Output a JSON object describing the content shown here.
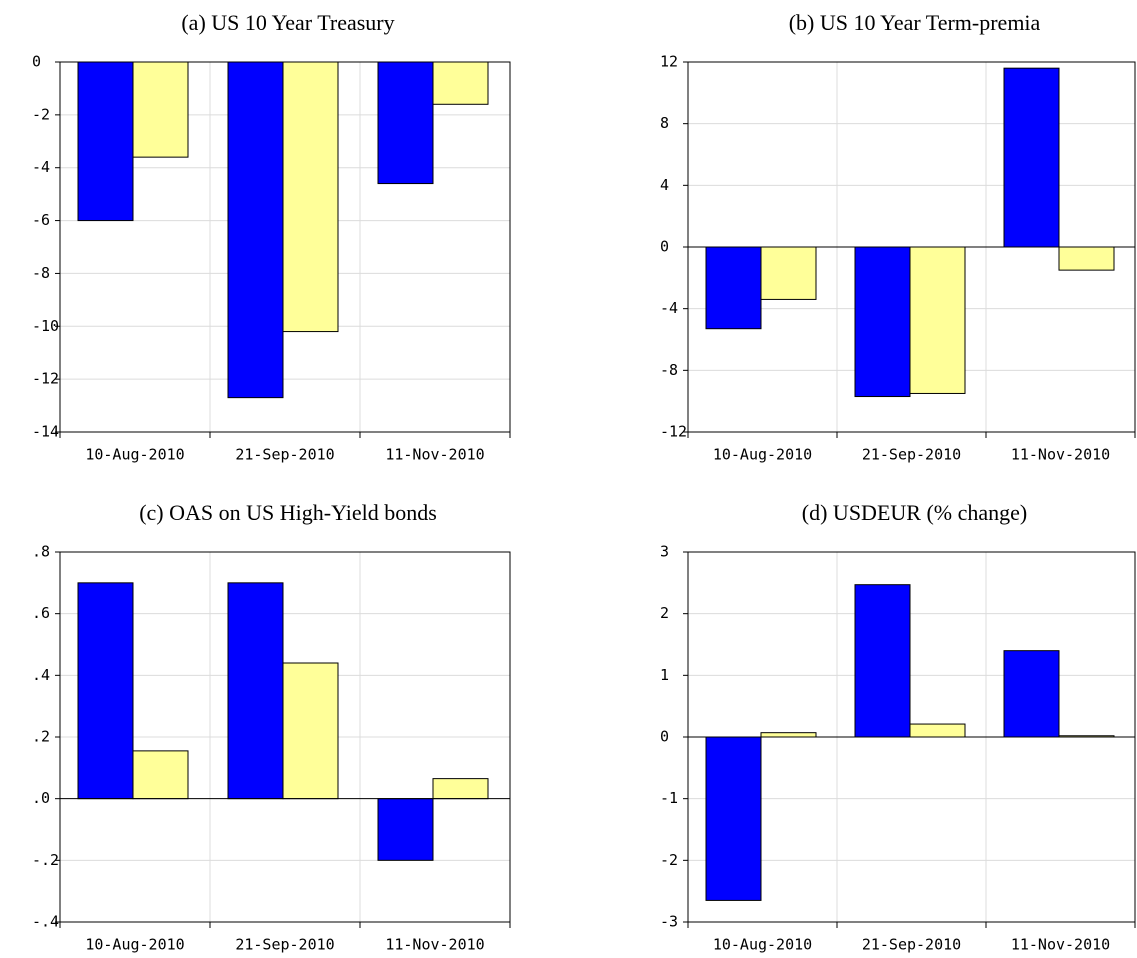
{
  "chart_data": [
    {
      "type": "bar",
      "title": "(a) US 10 Year Treasury",
      "categories": [
        "10-Aug-2010",
        "21-Sep-2010",
        "11-Nov-2010"
      ],
      "series": [
        {
          "color": "#0000ff",
          "values": [
            -6.0,
            -12.7,
            -4.6
          ]
        },
        {
          "color": "#ffff99",
          "values": [
            -3.6,
            -10.2,
            -1.6
          ]
        }
      ],
      "ylim": [
        -14,
        0
      ],
      "yticks": [
        0,
        -2,
        -4,
        -6,
        -8,
        -10,
        -12,
        -14
      ],
      "grid": true
    },
    {
      "type": "bar",
      "title": "(b) US 10 Year Term-premia",
      "categories": [
        "10-Aug-2010",
        "21-Sep-2010",
        "11-Nov-2010"
      ],
      "series": [
        {
          "color": "#0000ff",
          "values": [
            -5.3,
            -9.7,
            11.6
          ]
        },
        {
          "color": "#ffff99",
          "values": [
            -3.4,
            -9.5,
            -1.5
          ]
        }
      ],
      "ylim": [
        -12,
        12
      ],
      "yticks": [
        12,
        8,
        4,
        0,
        -4,
        -8,
        -12
      ],
      "grid": true
    },
    {
      "type": "bar",
      "title": "(c) OAS on US High-Yield bonds",
      "categories": [
        "10-Aug-2010",
        "21-Sep-2010",
        "11-Nov-2010"
      ],
      "series": [
        {
          "color": "#0000ff",
          "values": [
            0.7,
            0.7,
            -0.2
          ]
        },
        {
          "color": "#ffff99",
          "values": [
            0.155,
            0.44,
            0.065
          ]
        }
      ],
      "ylim": [
        -0.4,
        0.8
      ],
      "yticks": [
        {
          "value": 0.8,
          "label": ".8"
        },
        {
          "value": 0.6,
          "label": ".6"
        },
        {
          "value": 0.4,
          "label": ".4"
        },
        {
          "value": 0.2,
          "label": ".2"
        },
        {
          "value": 0,
          "label": ".0"
        },
        {
          "value": -0.2,
          "label": "-.2"
        },
        {
          "value": -0.4,
          "label": "-.4"
        }
      ],
      "grid": true
    },
    {
      "type": "bar",
      "title": "(d) USDEUR (% change)",
      "categories": [
        "10-Aug-2010",
        "21-Sep-2010",
        "11-Nov-2010"
      ],
      "series": [
        {
          "color": "#0000ff",
          "values": [
            -2.65,
            2.47,
            1.4
          ]
        },
        {
          "color": "#ffff99",
          "values": [
            0.07,
            0.21,
            0.02
          ]
        }
      ],
      "ylim": [
        -3,
        3
      ],
      "yticks": [
        3,
        2,
        1,
        0,
        -1,
        -2,
        -3
      ],
      "grid": true
    }
  ]
}
